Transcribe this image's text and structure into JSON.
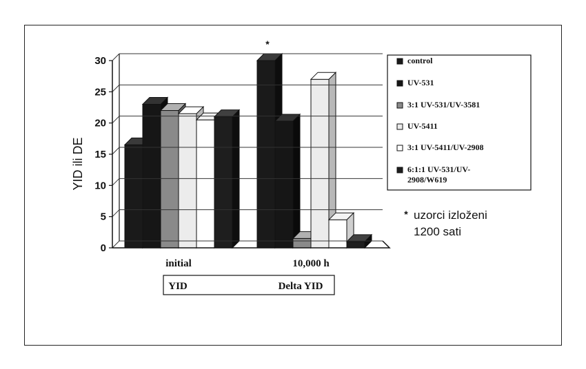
{
  "chart_data": {
    "type": "bar",
    "ylabel": "YID ili DE",
    "ylim": [
      0,
      30
    ],
    "yticks": [
      "0",
      "5",
      "10",
      "15",
      "20",
      "25",
      "30"
    ],
    "grid": true,
    "categories": [
      "initial",
      "10,000 h"
    ],
    "group_labels": [
      "YID",
      "Delta YID"
    ],
    "series": [
      {
        "name": "control",
        "values": [
          16.5,
          30
        ],
        "fill": "#1a1a1a",
        "side": "#0d0d0d",
        "top": "#3a3a3a"
      },
      {
        "name": "UV-531",
        "values": [
          23,
          20.3
        ],
        "fill": "#161616",
        "side": "#0a0a0a",
        "top": "#333333"
      },
      {
        "name": "3:1 UV-531/UV-3581",
        "values": [
          22,
          1.5
        ],
        "fill": "#8a8a8a",
        "side": "#5e5e5e",
        "top": "#b0b0b0"
      },
      {
        "name": "UV-5411",
        "values": [
          21.5,
          27
        ],
        "fill": "#ececec",
        "side": "#b8b8b8",
        "top": "#ffffff"
      },
      {
        "name": "3:1 UV-5411/UV-2908",
        "values": [
          20.5,
          4.5
        ],
        "fill": "#ffffff",
        "side": "#cfcfcf",
        "top": "#f4f4f4"
      },
      {
        "name": "6:1:1 UV-531/UV-2908/W619",
        "values": [
          21,
          1
        ],
        "fill": "#1e1e1e",
        "side": "#0e0e0e",
        "top": "#404040"
      }
    ],
    "legend_placement": "right",
    "legend_lines": [
      [
        "control"
      ],
      [
        "UV-531"
      ],
      [
        "3:1 UV-531/UV-3581"
      ],
      [
        "UV-5411"
      ],
      [
        "3:1 UV-5411/UV-2908"
      ],
      [
        "6:1:1 UV-531/UV-",
        "2908/W619"
      ]
    ],
    "annotation_star": "*",
    "note_star": "*",
    "note_lines": [
      "uzorci izloženi",
      "1200 sati"
    ]
  }
}
